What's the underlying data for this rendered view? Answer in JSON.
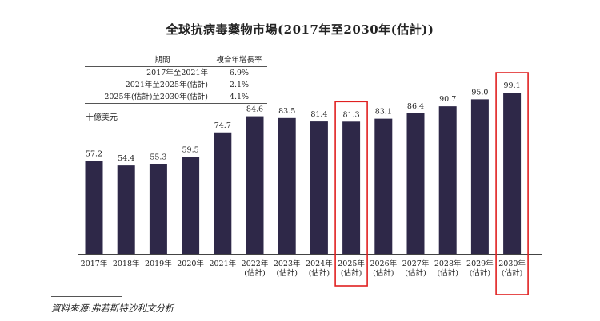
{
  "chart_data": {
    "type": "bar",
    "title": "全球抗病毒藥物市場(2017年至2030年(估計))",
    "unit_label": "十億美元",
    "categories": [
      [
        "2017年"
      ],
      [
        "2018年"
      ],
      [
        "2019年"
      ],
      [
        "2020年"
      ],
      [
        "2021年"
      ],
      [
        "2022年",
        "(估計)"
      ],
      [
        "2023年",
        "(估計)"
      ],
      [
        "2024年",
        "(估計)"
      ],
      [
        "2025年",
        "(估計)"
      ],
      [
        "2026年",
        "(估計)"
      ],
      [
        "2027年",
        "(估計)"
      ],
      [
        "2028年",
        "(估計)"
      ],
      [
        "2029年",
        "(估計)"
      ],
      [
        "2030年",
        "(估計)"
      ]
    ],
    "values": [
      57.2,
      54.4,
      55.3,
      59.5,
      74.7,
      84.6,
      83.5,
      81.4,
      81.3,
      83.1,
      86.4,
      90.7,
      95.0,
      99.1
    ],
    "value_labels": [
      "57.2",
      "54.4",
      "55.3",
      "59.5",
      "74.7",
      "84.6",
      "83.5",
      "81.4",
      "81.3",
      "83.1",
      "86.4",
      "90.7",
      "95.0",
      "99.1"
    ],
    "ylim": [
      0,
      105
    ],
    "xlabel": "",
    "ylabel": "",
    "bar_color": "#2e2848",
    "highlight_color": "#e02020",
    "highlighted_categories": [
      "2025年",
      "2030年"
    ],
    "table": {
      "headers": [
        "期間",
        "複合年增長率"
      ],
      "rows": [
        [
          "2017年至2021年",
          "6.9%"
        ],
        [
          "2021年至2025年(估計)",
          "2.1%"
        ],
        [
          "2025年(估計)至2030年(估計)",
          "4.1%"
        ]
      ]
    }
  },
  "source_note": "資料來源:弗若斯特沙利文分析"
}
